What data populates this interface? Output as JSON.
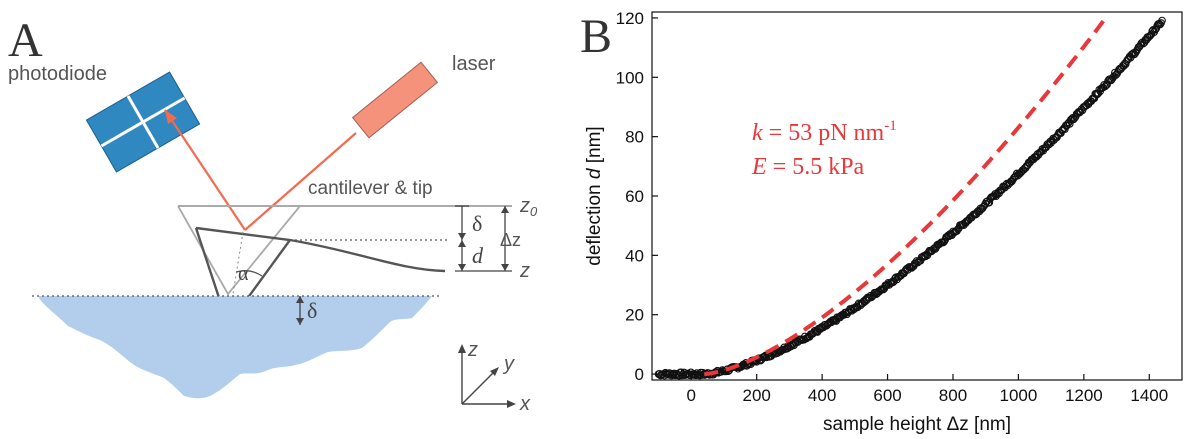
{
  "colors": {
    "beam": "#f26b4f",
    "laser_body": "#f4927b",
    "photodiode": "#2f88c0",
    "sample": "#b3cdec",
    "fit_line": "#e8383a",
    "data_points": "#111111",
    "annotation": "#e8383a"
  },
  "panel_a": {
    "label": "A",
    "photodiode_label": "photodiode",
    "laser_label": "laser",
    "cantilever_label": "cantilever & tip",
    "z0_label": "z",
    "z0_sub": "0",
    "delta_top_label": "δ",
    "d_label": "d",
    "delta_z_label": "Δz",
    "z_label": "z",
    "alpha_label": "α",
    "delta_bottom_label": "δ",
    "axis_z": "z",
    "axis_y": "y",
    "axis_x": "x"
  },
  "panel_b": {
    "label": "B",
    "annotation_k_var": "k",
    "annotation_k_value": " = 53 pN nm",
    "annotation_k_exp": "-1",
    "annotation_e_var": "E",
    "annotation_e_value": " = 5.5 kPa"
  },
  "chart_data": {
    "type": "scatter",
    "xlabel": "sample height Δz [nm]",
    "ylabel_prefix": "deflection ",
    "ylabel_var": "d",
    "ylabel_suffix": " [nm]",
    "xlim": [
      -120,
      1500
    ],
    "ylim": [
      -2,
      122
    ],
    "x_ticks": [
      0,
      200,
      400,
      600,
      800,
      1000,
      1200,
      1400
    ],
    "y_ticks": [
      0,
      20,
      40,
      60,
      80,
      100,
      120
    ],
    "grid": false,
    "series": [
      {
        "kind": "points",
        "x_range": [
          -100,
          1440
        ],
        "contact_point": 40,
        "y_at_end": 119,
        "exponent": 1.5
      },
      {
        "kind": "fit_dashed",
        "x_range": [
          40,
          1260
        ],
        "contact_point": 40,
        "y_at_end": 119,
        "exponent": 1.5
      }
    ]
  }
}
